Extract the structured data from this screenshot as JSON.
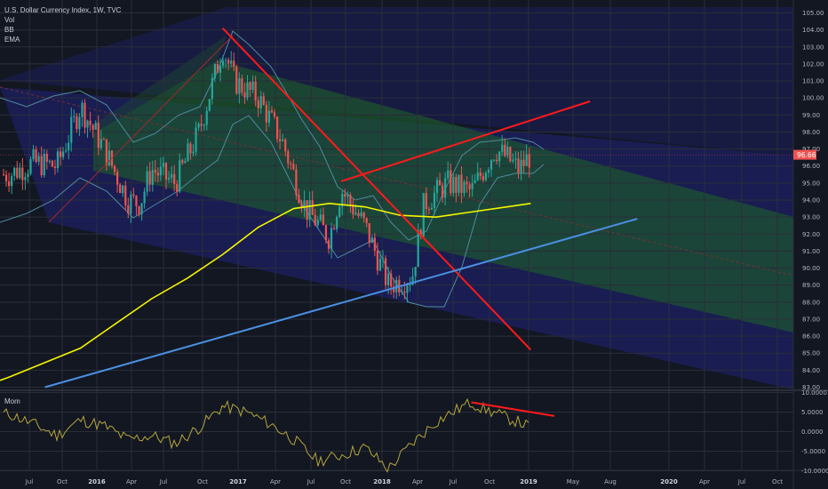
{
  "legend": {
    "symbol": "U.S. Dollar Currency Index, 1W, TVC",
    "vol": "Vol",
    "bb": "BB",
    "ema": "EMA"
  },
  "oscillator": {
    "label": "Mom"
  },
  "colors": {
    "background": "#131722",
    "bull": "#26a69a",
    "bear": "#ef5350",
    "ema": "#f5f500",
    "bollinger": "#4f8a9c",
    "trendline_red": "#ff1a1a",
    "trendline_blue": "#4a90e2",
    "channel_green": "#1d5a2c",
    "channel_blue": "#1f237a",
    "momentum": "#b5a63a",
    "price_tag": "#ef5350"
  },
  "price_tag": "96.66",
  "chart_data": [
    {
      "type": "candlestick",
      "title": "U.S. Dollar Currency Index, 1W, TVC",
      "x_ticks": [
        "Jul",
        "Oct",
        "2016",
        "Apr",
        "Jul",
        "Oct",
        "2017",
        "Apr",
        "Jul",
        "Oct",
        "2018",
        "Apr",
        "Jul",
        "Oct",
        "2019",
        "May",
        "Aug",
        "2020",
        "Apr",
        "Jul",
        "Oct"
      ],
      "y_ticks": [
        83.0,
        84.0,
        85.0,
        86.0,
        87.0,
        88.0,
        89.0,
        90.0,
        91.0,
        92.0,
        93.0,
        94.0,
        95.0,
        96.0,
        97.0,
        98.0,
        99.0,
        100.0,
        101.0,
        102.0,
        103.0,
        104.0,
        105.0
      ],
      "ylim": [
        83,
        105
      ],
      "grid": true,
      "last_price": 96.66,
      "closes": [
        {
          "x": "2015-06",
          "y": 95.5
        },
        {
          "x": "2015-08",
          "y": 96.2
        },
        {
          "x": "2015-10",
          "y": 96.0
        },
        {
          "x": "2015-12",
          "y": 99.5
        },
        {
          "x": "2016-02",
          "y": 97.0
        },
        {
          "x": "2016-04",
          "y": 94.0
        },
        {
          "x": "2016-05",
          "y": 93.8
        },
        {
          "x": "2016-06",
          "y": 95.8
        },
        {
          "x": "2016-08",
          "y": 95.0
        },
        {
          "x": "2016-10",
          "y": 98.0
        },
        {
          "x": "2016-12",
          "y": 103.0
        },
        {
          "x": "2017-01",
          "y": 101.0
        },
        {
          "x": "2017-03",
          "y": 100.0
        },
        {
          "x": "2017-05",
          "y": 97.5
        },
        {
          "x": "2017-07",
          "y": 93.5
        },
        {
          "x": "2017-09",
          "y": 91.8
        },
        {
          "x": "2017-10",
          "y": 94.6
        },
        {
          "x": "2017-12",
          "y": 92.5
        },
        {
          "x": "2018-02",
          "y": 89.0
        },
        {
          "x": "2018-04",
          "y": 89.5
        },
        {
          "x": "2018-05",
          "y": 93.8
        },
        {
          "x": "2018-07",
          "y": 95.0
        },
        {
          "x": "2018-09",
          "y": 94.5
        },
        {
          "x": "2018-11",
          "y": 97.0
        },
        {
          "x": "2018-12",
          "y": 96.5
        },
        {
          "x": "2019-01",
          "y": 95.8
        },
        {
          "x": "2019-02",
          "y": 96.66
        }
      ],
      "ema": [
        {
          "x": "2015-06",
          "y": 83.6
        },
        {
          "x": "2015-12",
          "y": 85.3
        },
        {
          "x": "2016-06",
          "y": 88.2
        },
        {
          "x": "2016-09",
          "y": 89.4
        },
        {
          "x": "2016-12",
          "y": 90.8
        },
        {
          "x": "2017-03",
          "y": 92.4
        },
        {
          "x": "2017-06",
          "y": 93.5
        },
        {
          "x": "2017-09",
          "y": 93.8
        },
        {
          "x": "2017-12",
          "y": 93.6
        },
        {
          "x": "2018-03",
          "y": 93.1
        },
        {
          "x": "2018-06",
          "y": 93.0
        },
        {
          "x": "2018-09",
          "y": 93.3
        },
        {
          "x": "2018-12",
          "y": 93.6
        },
        {
          "x": "2019-02",
          "y": 93.8
        }
      ],
      "trendlines": [
        {
          "name": "down",
          "from": {
            "x": "2016-12",
            "y": 104.1
          },
          "to": {
            "x": "2019-02",
            "y": 85.2
          }
        },
        {
          "name": "up-resistance",
          "from": {
            "x": "2017-10",
            "y": 95.1
          },
          "to": {
            "x": "2019-07",
            "y": 99.8
          }
        },
        {
          "name": "long-support",
          "from": {
            "x": "2015-09",
            "y": 83.0
          },
          "to": {
            "x": "2019-11",
            "y": 92.9
          }
        }
      ]
    },
    {
      "type": "line",
      "title": "Mom",
      "y_ticks": [
        10.0,
        5.0,
        0.0,
        -5.0,
        -10.0
      ],
      "y_tick_labels": [
        "10.0000",
        "5.0000",
        "0.0000",
        "-5.0000",
        "-10.0000"
      ],
      "ylim": [
        -12,
        11
      ],
      "grid": true,
      "values": [
        {
          "x": "2015-06",
          "y": 4.5
        },
        {
          "x": "2015-08",
          "y": 2.0
        },
        {
          "x": "2015-10",
          "y": -1.0
        },
        {
          "x": "2015-12",
          "y": 3.0
        },
        {
          "x": "2016-02",
          "y": 1.5
        },
        {
          "x": "2016-04",
          "y": -2.0
        },
        {
          "x": "2016-06",
          "y": -1.0
        },
        {
          "x": "2016-08",
          "y": -3.0
        },
        {
          "x": "2016-10",
          "y": 1.0
        },
        {
          "x": "2016-12",
          "y": 6.5
        },
        {
          "x": "2017-02",
          "y": 5.0
        },
        {
          "x": "2017-04",
          "y": 2.0
        },
        {
          "x": "2017-06",
          "y": -2.0
        },
        {
          "x": "2017-08",
          "y": -7.5
        },
        {
          "x": "2017-10",
          "y": -6.0
        },
        {
          "x": "2017-12",
          "y": -4.0
        },
        {
          "x": "2018-02",
          "y": -9.5
        },
        {
          "x": "2018-04",
          "y": -3.0
        },
        {
          "x": "2018-06",
          "y": 2.5
        },
        {
          "x": "2018-08",
          "y": 6.0
        },
        {
          "x": "2018-09",
          "y": 7.5
        },
        {
          "x": "2018-10",
          "y": 5.8
        },
        {
          "x": "2018-11",
          "y": 4.8
        },
        {
          "x": "2018-12",
          "y": 3.5
        },
        {
          "x": "2019-01",
          "y": 2.5
        },
        {
          "x": "2019-02",
          "y": 1.0
        }
      ],
      "divergence_line": {
        "from": {
          "x": "2018-09",
          "y": 7.5
        },
        "to": {
          "x": "2019-04",
          "y": 4.0
        }
      }
    }
  ]
}
